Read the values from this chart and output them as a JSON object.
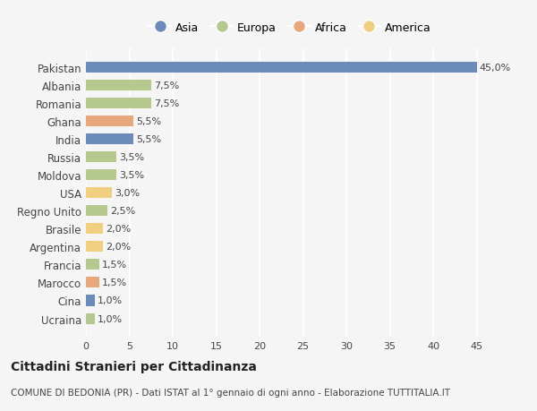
{
  "countries": [
    "Pakistan",
    "Albania",
    "Romania",
    "Ghana",
    "India",
    "Russia",
    "Moldova",
    "USA",
    "Regno Unito",
    "Brasile",
    "Argentina",
    "Francia",
    "Marocco",
    "Cina",
    "Ucraina"
  ],
  "values": [
    45.0,
    7.5,
    7.5,
    5.5,
    5.5,
    3.5,
    3.5,
    3.0,
    2.5,
    2.0,
    2.0,
    1.5,
    1.5,
    1.0,
    1.0
  ],
  "continents": [
    "Asia",
    "Europa",
    "Europa",
    "Africa",
    "Asia",
    "Europa",
    "Europa",
    "America",
    "Europa",
    "America",
    "America",
    "Europa",
    "Africa",
    "Asia",
    "Europa"
  ],
  "labels": [
    "45,0%",
    "7,5%",
    "7,5%",
    "5,5%",
    "5,5%",
    "3,5%",
    "3,5%",
    "3,0%",
    "2,5%",
    "2,0%",
    "2,0%",
    "1,5%",
    "1,5%",
    "1,0%",
    "1,0%"
  ],
  "colors": {
    "Asia": "#6b8cba",
    "Europa": "#b5c98e",
    "Africa": "#e8a87c",
    "America": "#f0d080"
  },
  "legend_order": [
    "Asia",
    "Europa",
    "Africa",
    "America"
  ],
  "xlim": [
    0,
    47
  ],
  "xticks": [
    0,
    5,
    10,
    15,
    20,
    25,
    30,
    35,
    40,
    45
  ],
  "title": "Cittadini Stranieri per Cittadinanza",
  "subtitle": "COMUNE DI BEDONIA (PR) - Dati ISTAT al 1° gennaio di ogni anno - Elaborazione TUTTITALIA.IT",
  "bg_color": "#f5f5f5",
  "grid_color": "#ffffff",
  "bar_height": 0.6
}
